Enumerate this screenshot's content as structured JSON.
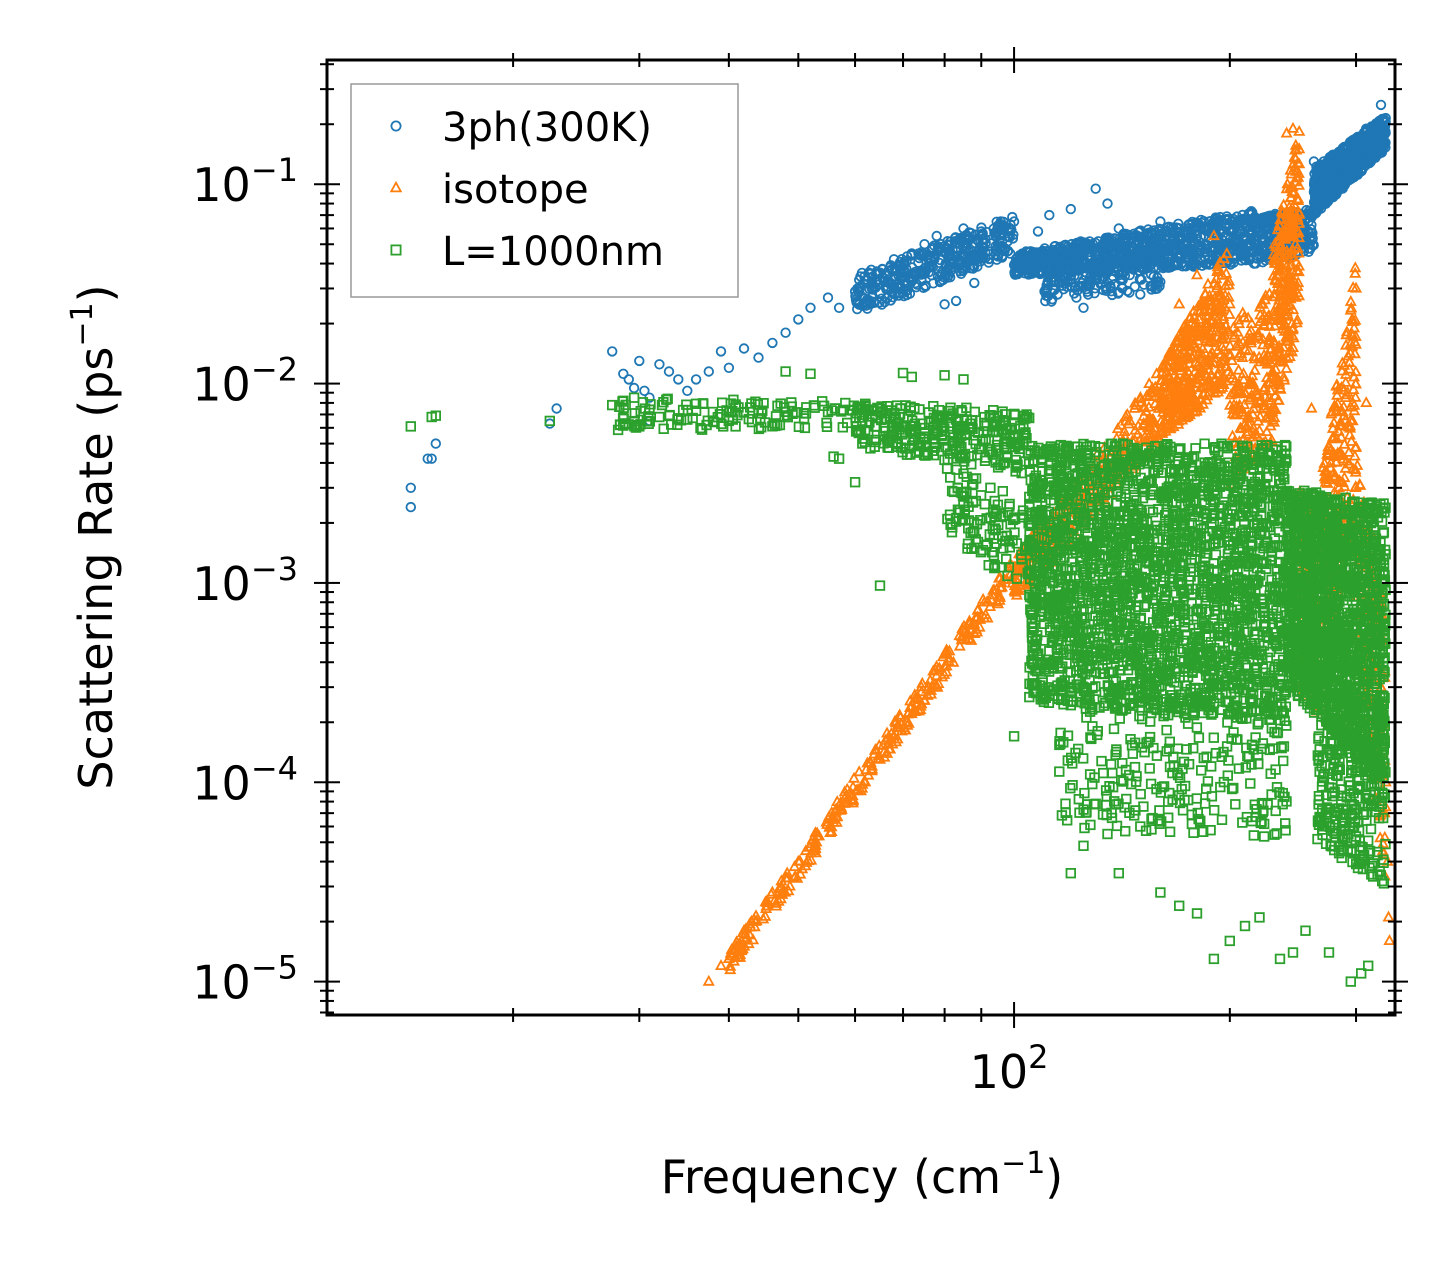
{
  "chart_data": {
    "type": "scatter",
    "x_scale": "log",
    "y_scale": "log",
    "xlabel": {
      "text": "Frequency (cm",
      "sup": "−1",
      "close": ")"
    },
    "ylabel": {
      "text": "Scattering Rate (ps",
      "sup": "−1",
      "close": ")"
    },
    "xlim": [
      11,
      340
    ],
    "ylim": [
      6.8e-06,
      0.42
    ],
    "xticks": [
      {
        "value": 100,
        "base": "10",
        "exp": "2"
      }
    ],
    "yticks": [
      {
        "value": 0.1,
        "base": "10",
        "exp": "−1"
      },
      {
        "value": 0.01,
        "base": "10",
        "exp": "−2"
      },
      {
        "value": 0.001,
        "base": "10",
        "exp": "−3"
      },
      {
        "value": 0.0001,
        "base": "10",
        "exp": "−4"
      },
      {
        "value": 1e-05,
        "base": "10",
        "exp": "−5"
      }
    ],
    "legend_position": "upper-left",
    "series": [
      {
        "name": "3ph(300K)",
        "marker": "circle",
        "color": "#1f77b4",
        "points": [
          [
            14.4,
            0.0024
          ],
          [
            14.4,
            0.003
          ],
          [
            15.2,
            0.0042
          ],
          [
            15.4,
            0.0042
          ],
          [
            15.6,
            0.005
          ],
          [
            22.5,
            0.0063
          ],
          [
            23,
            0.0075
          ],
          [
            27.5,
            0.0145
          ],
          [
            28.5,
            0.0112
          ],
          [
            29,
            0.0105
          ],
          [
            29.5,
            0.0095
          ],
          [
            30,
            0.013
          ],
          [
            30.5,
            0.0092
          ],
          [
            31,
            0.0085
          ],
          [
            31,
            0.0065
          ],
          [
            32,
            0.0125
          ],
          [
            33,
            0.0115
          ],
          [
            34,
            0.0105
          ],
          [
            35,
            0.0092
          ],
          [
            36,
            0.0105
          ],
          [
            37.5,
            0.0115
          ],
          [
            39,
            0.0145
          ],
          [
            40,
            0.012
          ],
          [
            42,
            0.015
          ],
          [
            44,
            0.0135
          ],
          [
            46,
            0.016
          ],
          [
            48,
            0.018
          ],
          [
            50,
            0.021
          ],
          [
            52,
            0.024
          ],
          [
            55,
            0.027
          ],
          [
            57,
            0.024
          ],
          [
            60,
            0.029
          ],
          [
            62,
            0.033
          ],
          [
            65,
            0.036
          ],
          [
            68,
            0.042
          ],
          [
            70,
            0.037
          ],
          [
            72,
            0.045
          ],
          [
            75,
            0.05
          ],
          [
            78,
            0.055
          ],
          [
            80,
            0.025
          ],
          [
            83,
            0.026
          ],
          [
            85,
            0.06
          ],
          [
            88,
            0.032
          ],
          [
            90,
            0.058
          ],
          [
            95,
            0.062
          ],
          [
            100,
            0.065
          ],
          [
            108,
            0.058
          ],
          [
            112,
            0.07
          ],
          [
            115,
            0.028
          ],
          [
            120,
            0.075
          ],
          [
            125,
            0.024
          ],
          [
            130,
            0.095
          ],
          [
            135,
            0.08
          ],
          [
            140,
            0.06
          ],
          [
            145,
            0.035
          ],
          [
            150,
            0.028
          ],
          [
            160,
            0.065
          ],
          [
            170,
            0.06
          ],
          [
            180,
            0.055
          ],
          [
            190,
            0.048
          ],
          [
            200,
            0.058
          ],
          [
            210,
            0.052
          ],
          [
            220,
            0.06
          ],
          [
            230,
            0.05
          ],
          [
            240,
            0.07
          ],
          [
            250,
            0.065
          ],
          [
            255,
            0.055
          ],
          [
            262,
            0.13
          ],
          [
            270,
            0.09
          ],
          [
            280,
            0.12
          ],
          [
            290,
            0.14
          ],
          [
            300,
            0.17
          ],
          [
            310,
            0.19
          ],
          [
            320,
            0.2
          ],
          [
            325,
            0.25
          ]
        ],
        "bands": [
          {
            "x0": 60,
            "x1": 100,
            "lo0": 0.022,
            "hi0": 0.035,
            "lo1": 0.045,
            "hi1": 0.07,
            "n": 380
          },
          {
            "x0": 100,
            "x1": 220,
            "lo0": 0.035,
            "hi0": 0.045,
            "lo1": 0.04,
            "hi1": 0.075,
            "n": 900
          },
          {
            "x0": 110,
            "x1": 160,
            "lo0": 0.025,
            "hi0": 0.035,
            "lo1": 0.03,
            "hi1": 0.05,
            "n": 180
          },
          {
            "x0": 220,
            "x1": 262,
            "lo0": 0.04,
            "hi0": 0.07,
            "lo1": 0.045,
            "hi1": 0.075,
            "n": 240
          },
          {
            "x0": 262,
            "x1": 330,
            "lo0": 0.07,
            "hi0": 0.12,
            "lo1": 0.15,
            "hi1": 0.22,
            "n": 750
          }
        ]
      },
      {
        "name": "isotope",
        "marker": "triangle",
        "color": "#ff7f0e",
        "points": [
          [
            37.5,
            1e-05
          ],
          [
            39,
            1.2e-05
          ],
          [
            40,
            1.3e-05
          ],
          [
            41,
            1.5e-05
          ],
          [
            42,
            1.8e-05
          ],
          [
            43,
            2e-05
          ],
          [
            45,
            2.5e-05
          ],
          [
            46,
            2.8e-05
          ],
          [
            48,
            3.3e-05
          ],
          [
            50,
            4e-05
          ],
          [
            53,
            5e-05
          ],
          [
            56,
            6.5e-05
          ],
          [
            58,
            7.8e-05
          ],
          [
            62,
            0.0001
          ],
          [
            65,
            0.00013
          ],
          [
            68,
            0.00017
          ],
          [
            72,
            0.00022
          ],
          [
            76,
            0.0003
          ],
          [
            80,
            0.00038
          ],
          [
            84,
            0.00048
          ],
          [
            88,
            0.00062
          ],
          [
            92,
            0.0008
          ],
          [
            96,
            0.001
          ],
          [
            100,
            0.0012
          ],
          [
            105,
            0.0015
          ],
          [
            110,
            0.0019
          ],
          [
            117,
            0.0025
          ],
          [
            125,
            0.0033
          ],
          [
            135,
            0.0045
          ],
          [
            145,
            0.0065
          ],
          [
            160,
            0.009
          ],
          [
            170,
            0.025
          ],
          [
            180,
            0.035
          ],
          [
            190,
            0.055
          ],
          [
            200,
            0.025
          ],
          [
            210,
            0.009
          ],
          [
            220,
            0.003
          ],
          [
            240,
            0.18
          ],
          [
            245,
            0.19
          ],
          [
            250,
            0.15
          ],
          [
            260,
            0.0075
          ],
          [
            270,
            0.0025
          ],
          [
            285,
            0.0045
          ],
          [
            300,
            0.03
          ],
          [
            310,
            0.008
          ],
          [
            320,
            0.0006
          ],
          [
            325,
            0.0003
          ],
          [
            330,
            0.0001
          ],
          [
            332,
            4e-05
          ],
          [
            333,
            2.1e-05
          ],
          [
            334,
            1.6e-05
          ]
        ],
        "bands": [
          {
            "x0": 40,
            "x1": 110,
            "lo0": 1.1e-05,
            "hi0": 1.4e-05,
            "lo1": 0.0016,
            "hi1": 0.0022,
            "n": 320
          },
          {
            "x0": 100,
            "x1": 160,
            "lo0": 0.0008,
            "hi0": 0.0012,
            "lo1": 0.005,
            "hi1": 0.012,
            "n": 280
          },
          {
            "x0": 160,
            "x1": 200,
            "lo0": 0.005,
            "hi0": 0.012,
            "lo1": 0.01,
            "hi1": 0.05,
            "n": 420
          },
          {
            "x0": 200,
            "x1": 230,
            "lo0": 0.003,
            "hi0": 0.02,
            "lo1": 0.005,
            "hi1": 0.03,
            "n": 200
          },
          {
            "x0": 230,
            "x1": 250,
            "lo0": 0.006,
            "hi0": 0.05,
            "lo1": 0.02,
            "hi1": 0.19,
            "n": 260
          },
          {
            "x0": 250,
            "x1": 270,
            "lo0": 0.0003,
            "hi0": 0.003,
            "lo1": 0.0002,
            "hi1": 0.002,
            "n": 140
          },
          {
            "x0": 270,
            "x1": 300,
            "lo0": 0.0004,
            "hi0": 0.004,
            "lo1": 0.002,
            "hi1": 0.04,
            "n": 260
          },
          {
            "x0": 300,
            "x1": 330,
            "lo0": 0.0005,
            "hi0": 0.005,
            "lo1": 3e-05,
            "hi1": 0.0006,
            "n": 160
          }
        ]
      },
      {
        "name": "L=1000nm",
        "marker": "square",
        "color": "#2ca02c",
        "points": [
          [
            14.4,
            0.0061
          ],
          [
            15.4,
            0.0068
          ],
          [
            15.6,
            0.0069
          ],
          [
            22.5,
            0.0065
          ],
          [
            27.5,
            0.0078
          ],
          [
            28.5,
            0.0082
          ],
          [
            29.5,
            0.0085
          ],
          [
            30,
            0.0061
          ],
          [
            31,
            0.0074
          ],
          [
            32,
            0.0068
          ],
          [
            34,
            0.0067
          ],
          [
            35,
            0.0066
          ],
          [
            36,
            0.0073
          ],
          [
            38,
            0.0072
          ],
          [
            40,
            0.0068
          ],
          [
            42,
            0.0072
          ],
          [
            44,
            0.0071
          ],
          [
            48,
            0.0115
          ],
          [
            52,
            0.0112
          ],
          [
            55,
            0.0072
          ],
          [
            56,
            0.0043
          ],
          [
            57,
            0.0042
          ],
          [
            60,
            0.0032
          ],
          [
            65,
            0.00097
          ],
          [
            70,
            0.0113
          ],
          [
            72,
            0.0108
          ],
          [
            75,
            0.0053
          ],
          [
            80,
            0.011
          ],
          [
            85,
            0.0105
          ],
          [
            88,
            0.0015
          ],
          [
            90,
            0.0047
          ],
          [
            95,
            0.0038
          ],
          [
            100,
            0.00017
          ],
          [
            105,
            0.00087
          ],
          [
            110,
            0.0015
          ],
          [
            115,
            0.00062
          ],
          [
            120,
            3.5e-05
          ],
          [
            125,
            4.8e-05
          ],
          [
            130,
            7.8e-05
          ],
          [
            135,
            5.5e-05
          ],
          [
            140,
            3.5e-05
          ],
          [
            150,
            6e-05
          ],
          [
            160,
            2.8e-05
          ],
          [
            170,
            2.4e-05
          ],
          [
            180,
            2.2e-05
          ],
          [
            190,
            1.3e-05
          ],
          [
            200,
            1.6e-05
          ],
          [
            210,
            1.9e-05
          ],
          [
            220,
            2.1e-05
          ],
          [
            235,
            1.3e-05
          ],
          [
            245,
            1.4e-05
          ],
          [
            255,
            1.8e-05
          ],
          [
            275,
            1.4e-05
          ],
          [
            295,
            1e-05
          ],
          [
            305,
            1.1e-05
          ],
          [
            312,
            1.2e-05
          ]
        ],
        "bands": [
          {
            "x0": 28,
            "x1": 60,
            "lo0": 0.0058,
            "hi0": 0.0085,
            "lo1": 0.006,
            "hi1": 0.0082,
            "n": 120
          },
          {
            "x0": 60,
            "x1": 105,
            "lo0": 0.0048,
            "hi0": 0.008,
            "lo1": 0.0035,
            "hi1": 0.0075,
            "n": 320
          },
          {
            "x0": 80,
            "x1": 120,
            "lo0": 0.0018,
            "hi0": 0.004,
            "lo1": 0.0006,
            "hi1": 0.002,
            "n": 160
          },
          {
            "x0": 105,
            "x1": 240,
            "lo0": 0.00025,
            "hi0": 0.005,
            "lo1": 0.0002,
            "hi1": 0.005,
            "n": 2600
          },
          {
            "x0": 115,
            "x1": 240,
            "lo0": 6e-05,
            "hi0": 0.00025,
            "lo1": 5e-05,
            "hi1": 0.0002,
            "n": 240
          },
          {
            "x0": 240,
            "x1": 330,
            "lo0": 0.0003,
            "hi0": 0.003,
            "lo1": 0.0001,
            "hi1": 0.0025,
            "n": 1700
          },
          {
            "x0": 265,
            "x1": 330,
            "lo0": 5e-05,
            "hi0": 0.0002,
            "lo1": 3e-05,
            "hi1": 0.00015,
            "n": 260
          }
        ]
      }
    ]
  }
}
